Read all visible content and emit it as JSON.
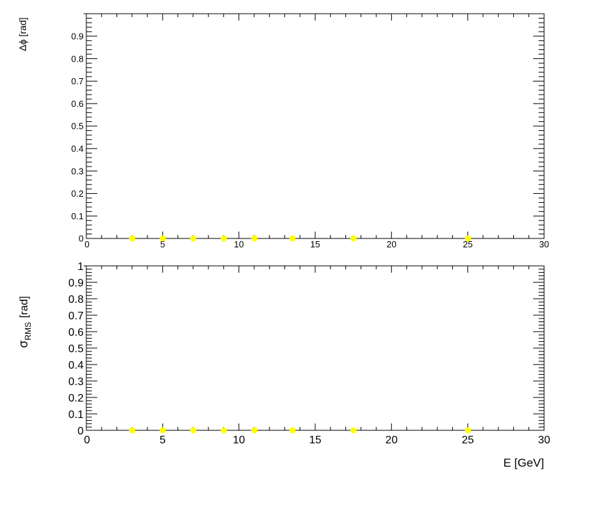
{
  "chart_data": [
    {
      "type": "scatter",
      "ylabel": "Δϕ  [rad]",
      "xlabel": "",
      "xlim": [
        0,
        30
      ],
      "ylim": [
        0,
        1
      ],
      "xticks": [
        "0",
        "5",
        "10",
        "15",
        "20",
        "25",
        "30"
      ],
      "yticks": [
        "0",
        "0.1",
        "0.2",
        "0.3",
        "0.4",
        "0.5",
        "0.6",
        "0.7",
        "0.8",
        "0.9"
      ],
      "marker_color": "#ffff00",
      "grid": false,
      "series": [
        {
          "x": [
            3,
            5,
            7,
            9,
            11,
            13.5,
            17.5,
            25
          ],
          "y": [
            0,
            0,
            0,
            0,
            0,
            0,
            0,
            0
          ]
        }
      ]
    },
    {
      "type": "scatter",
      "ylabel_main": "σ",
      "ylabel_sub": "RMS",
      "ylabel_unit": "[rad]",
      "xlabel": "E  [GeV]",
      "xlim": [
        0,
        30
      ],
      "ylim": [
        0,
        1
      ],
      "xticks": [
        "0",
        "5",
        "10",
        "15",
        "20",
        "25",
        "30"
      ],
      "yticks": [
        "0",
        "0.1",
        "0.2",
        "0.3",
        "0.4",
        "0.5",
        "0.6",
        "0.7",
        "0.8",
        "0.9",
        "1"
      ],
      "marker_color": "#ffff00",
      "grid": false,
      "series": [
        {
          "x": [
            3,
            5,
            7,
            9,
            11,
            13.5,
            17.5,
            25
          ],
          "y": [
            0,
            0,
            0,
            0,
            0,
            0,
            0,
            0
          ]
        }
      ]
    }
  ]
}
